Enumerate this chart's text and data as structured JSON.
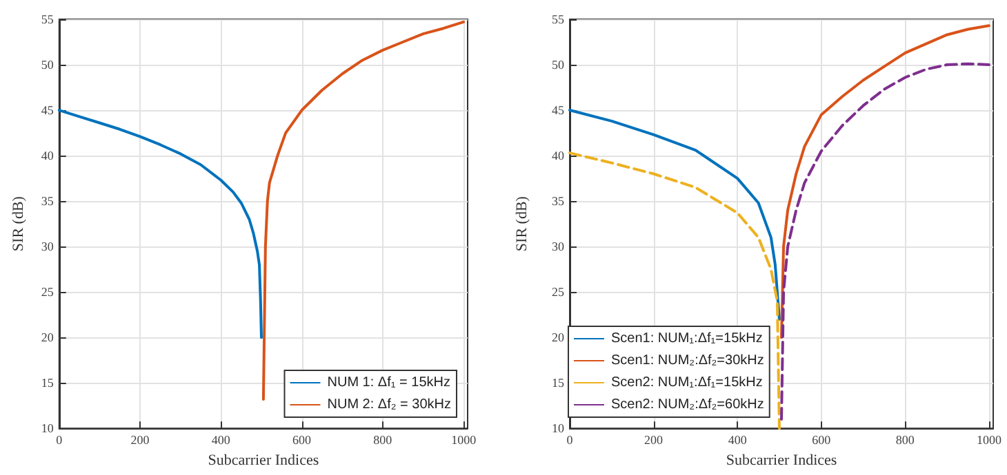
{
  "chart_data": [
    {
      "type": "line",
      "xlabel": "Subcarrier Indices",
      "ylabel": "SIR (dB)",
      "xlim": [
        0,
        1010
      ],
      "xticks": [
        0,
        200,
        400,
        600,
        800,
        1000
      ],
      "ylim": [
        10,
        55
      ],
      "yticks": [
        10,
        15,
        20,
        25,
        30,
        35,
        40,
        45,
        50,
        55
      ],
      "grid": true,
      "legend": "bottom right",
      "marker": "none",
      "line_style": "solid",
      "series": [
        {
          "name": "NUM 1: Δf₁ = 15kHz",
          "color": "#0072bd",
          "x": [
            0,
            50,
            100,
            150,
            200,
            250,
            300,
            350,
            400,
            430,
            450,
            470,
            480,
            490,
            495,
            498,
            500
          ],
          "values": [
            45,
            44.3,
            43.6,
            42.9,
            42.1,
            41.2,
            40.2,
            39,
            37.3,
            36,
            34.8,
            33,
            31.5,
            29.5,
            28,
            24,
            20
          ]
        },
        {
          "name": "NUM 2: Δf₂ = 30kHz",
          "color": "#d95319",
          "x": [
            505,
            507,
            510,
            515,
            520,
            540,
            560,
            600,
            650,
            700,
            750,
            800,
            850,
            900,
            950,
            1000
          ],
          "values": [
            13.2,
            20,
            30,
            35,
            37,
            40,
            42.5,
            45,
            47.2,
            49,
            50.5,
            51.6,
            52.5,
            53.4,
            54,
            54.7
          ]
        }
      ]
    },
    {
      "type": "line",
      "xlabel": "Subcarrier Indices",
      "ylabel": "SIR (dB)",
      "xlim": [
        0,
        1010
      ],
      "xticks": [
        0,
        200,
        400,
        600,
        800,
        1000
      ],
      "ylim": [
        10,
        55
      ],
      "yticks": [
        10,
        15,
        20,
        25,
        30,
        35,
        40,
        45,
        50,
        55
      ],
      "grid": true,
      "legend": "bottom left",
      "marker": "none",
      "series": [
        {
          "name": "Scen1: NUM₁:Δf₁=15kHz",
          "color": "#0072bd",
          "line_style": "solid",
          "x": [
            0,
            100,
            200,
            300,
            400,
            450,
            480,
            490,
            495,
            500
          ],
          "values": [
            45,
            43.8,
            42.3,
            40.6,
            37.5,
            34.8,
            31,
            28,
            25,
            22
          ]
        },
        {
          "name": "Scen1: NUM₂:Δf₂=30kHz",
          "color": "#d95319",
          "line_style": "solid",
          "x": [
            505,
            510,
            520,
            540,
            560,
            600,
            650,
            700,
            750,
            800,
            850,
            900,
            950,
            1000
          ],
          "values": [
            20,
            30,
            34,
            38,
            41,
            44.5,
            46.5,
            48.3,
            49.8,
            51.3,
            52.3,
            53.3,
            53.9,
            54.3
          ]
        },
        {
          "name": "Scen2: NUM₁:Δf₁=15kHz",
          "color": "#edb120",
          "line_style": "dashed",
          "x": [
            0,
            100,
            200,
            300,
            400,
            450,
            480,
            495,
            500
          ],
          "values": [
            40.3,
            39.2,
            38,
            36.5,
            33.7,
            31,
            27.5,
            24,
            10
          ]
        },
        {
          "name": "Scen2: NUM₂:Δf₂=60kHz",
          "color": "#7e2f8e",
          "line_style": "dashed",
          "x": [
            505,
            510,
            520,
            540,
            560,
            600,
            650,
            700,
            750,
            800,
            850,
            900,
            950,
            1000
          ],
          "values": [
            11,
            25,
            30,
            34,
            37,
            40.5,
            43.3,
            45.5,
            47.3,
            48.6,
            49.5,
            50,
            50.1,
            50
          ]
        }
      ]
    }
  ]
}
